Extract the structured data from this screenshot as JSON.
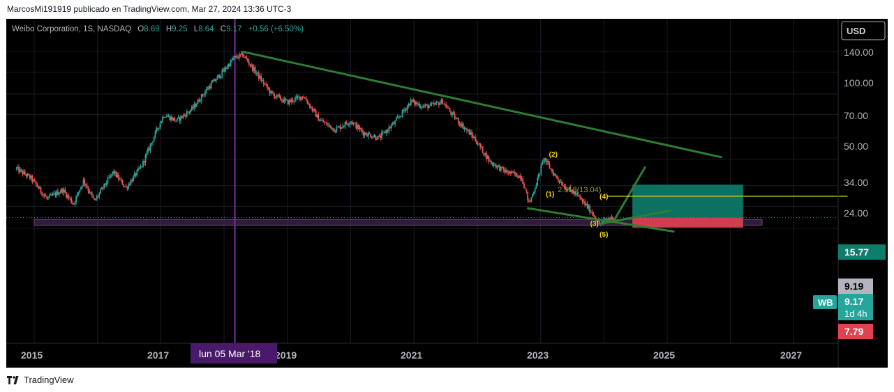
{
  "header": {
    "caption": "MarcosMi191919 publicado en TradingView.com, Mar 27, 2024 13:36 UTC-3"
  },
  "legend": {
    "symbol": "Weibo Corporation, 1S, NASDAQ",
    "open_label": "O",
    "open": "8.69",
    "high_label": "H",
    "high": "9.25",
    "low_label": "L",
    "low": "8.64",
    "close_label": "C",
    "close": "9.17",
    "change": "+0.56 (+6.50%)"
  },
  "currency_button": "USD",
  "price_axis_ticks": [
    "140.00",
    "100.00",
    "70.00",
    "50.00",
    "34.00",
    "24.00"
  ],
  "time_axis_ticks": [
    "2015",
    "2017",
    "2019",
    "2021",
    "2023",
    "2025",
    "2027"
  ],
  "crosshair_label": "lun 05 Mar '18",
  "price_labels": {
    "target": "15.77",
    "prev_close": "9.19",
    "ticker": "WB",
    "last": "9.17",
    "countdown": "1d 4h",
    "stop": "7.79"
  },
  "wave_labels": [
    "(1)",
    "(2)",
    "(3)",
    "(4)",
    "(5)"
  ],
  "fib_label": "2.618(13.04)",
  "colors": {
    "background": "#000000",
    "bull": "#26a69a",
    "bear": "#ef5350",
    "trendline": "#2e7d32",
    "crosshair": "#7b2fa0",
    "target_zone": "#0e7d6b",
    "stop_zone": "#e0424f",
    "wave_label": "#f5d90a",
    "fib_line": "#c8c82a"
  },
  "footer": {
    "brand": "TradingView",
    "logo_icon": "tradingview-logo-icon"
  },
  "chart_data": {
    "type": "candlestick",
    "symbol": "WB",
    "interval": "1 week",
    "x_range": [
      2014.7,
      2027.8
    ],
    "y_scale": "log",
    "y_range": [
      5.9,
      175
    ],
    "price_path": [
      [
        2014.72,
        20.5
      ],
      [
        2014.95,
        17.5
      ],
      [
        2015.2,
        12.5
      ],
      [
        2015.45,
        14.5
      ],
      [
        2015.62,
        11.5
      ],
      [
        2015.78,
        17.0
      ],
      [
        2015.95,
        12.0
      ],
      [
        2016.25,
        19.5
      ],
      [
        2016.45,
        15.0
      ],
      [
        2016.7,
        21.5
      ],
      [
        2016.95,
        40.0
      ],
      [
        2017.05,
        50.0
      ],
      [
        2017.25,
        45.0
      ],
      [
        2017.5,
        55.0
      ],
      [
        2017.75,
        78.0
      ],
      [
        2017.95,
        97.0
      ],
      [
        2018.15,
        126.0
      ],
      [
        2018.3,
        133.0
      ],
      [
        2018.5,
        100.0
      ],
      [
        2018.75,
        70.0
      ],
      [
        2019.0,
        61.0
      ],
      [
        2019.25,
        68.0
      ],
      [
        2019.5,
        46.0
      ],
      [
        2019.75,
        39.0
      ],
      [
        2020.0,
        45.0
      ],
      [
        2020.2,
        37.0
      ],
      [
        2020.45,
        34.0
      ],
      [
        2020.7,
        44.0
      ],
      [
        2020.95,
        62.0
      ],
      [
        2021.15,
        57.0
      ],
      [
        2021.3,
        58.0
      ],
      [
        2021.45,
        62.0
      ],
      [
        2021.6,
        50.0
      ],
      [
        2021.8,
        40.0
      ],
      [
        2021.95,
        34.0
      ],
      [
        2022.2,
        23.0
      ],
      [
        2022.45,
        19.5
      ],
      [
        2022.7,
        18.0
      ],
      [
        2022.82,
        11.5
      ],
      [
        2022.95,
        17.0
      ],
      [
        2023.05,
        24.5
      ],
      [
        2023.2,
        19.0
      ],
      [
        2023.4,
        15.0
      ],
      [
        2023.55,
        13.5
      ],
      [
        2023.7,
        11.5
      ],
      [
        2023.85,
        9.5
      ],
      [
        2023.93,
        8.2
      ],
      [
        2024.05,
        9.0
      ],
      [
        2024.2,
        9.17
      ]
    ],
    "last": {
      "open": 8.69,
      "high": 9.25,
      "low": 8.64,
      "close": 9.17,
      "change": 0.56,
      "change_pct": 6.5
    },
    "trendlines": [
      {
        "name": "resistance",
        "from": [
          2018.3,
          140
        ],
        "to": [
          2025.85,
          24.8
        ]
      },
      {
        "name": "wedge-lower",
        "from": [
          2022.8,
          10.7
        ],
        "to": [
          2025.1,
          7.3
        ]
      },
      {
        "name": "wedge-upper",
        "from": [
          2023.95,
          8.3
        ],
        "to": [
          2025.05,
          10.3
        ]
      },
      {
        "name": "breakout-projection",
        "from": [
          2024.15,
          8.6
        ],
        "to": [
          2024.65,
          21.0
        ]
      }
    ],
    "support_zone": {
      "from_x": 2015.0,
      "to_x": 2026.5,
      "low": 8.1,
      "high": 8.9
    },
    "position": {
      "entry": 9.17,
      "target": 15.77,
      "stop": 7.79,
      "from_x": 2024.45,
      "to_x": 2026.2
    },
    "fib_extension": {
      "ratio": 2.618,
      "price": 13.04,
      "line_from_x": 2024.05,
      "line_to_x": 2027.85
    },
    "waves": [
      {
        "label": "(1)",
        "x": 2023.15,
        "y": 13.0
      },
      {
        "label": "(2)",
        "x": 2023.2,
        "y": 25.0
      },
      {
        "label": "(3)",
        "x": 2023.85,
        "y": 8.0
      },
      {
        "label": "(4)",
        "x": 2024.0,
        "y": 12.5
      },
      {
        "label": "(5)",
        "x": 2024.0,
        "y": 6.7
      }
    ],
    "crosshair_x": 2018.17
  }
}
